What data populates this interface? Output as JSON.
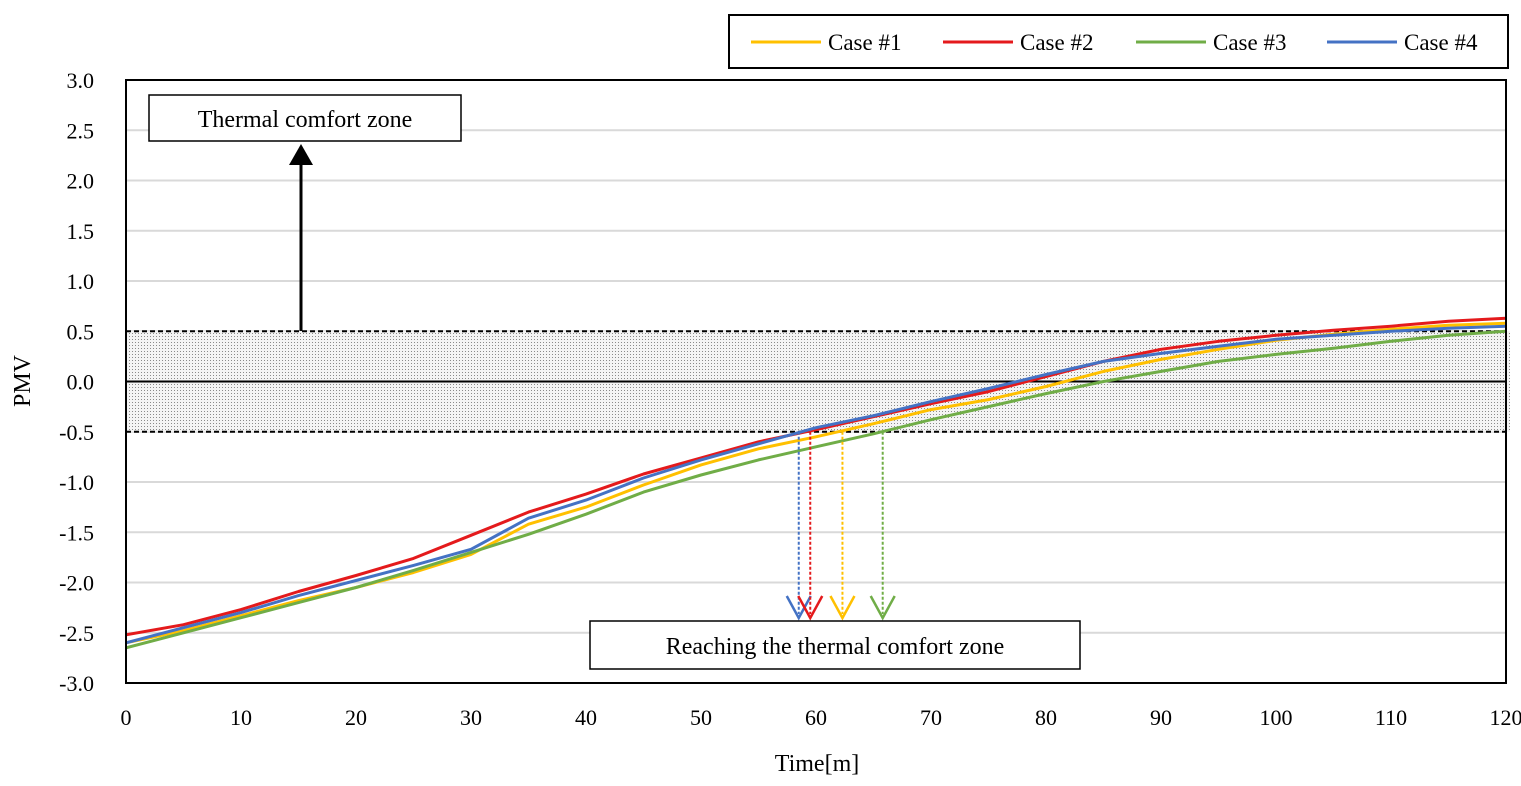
{
  "chart_data": {
    "type": "line",
    "xlabel": "Time[m]",
    "ylabel": "PMV",
    "xlim": [
      0,
      120
    ],
    "ylim": [
      -3.0,
      3.0
    ],
    "x_ticks": [
      "0",
      "10",
      "20",
      "30",
      "40",
      "50",
      "60",
      "70",
      "80",
      "90",
      "100",
      "110",
      "120"
    ],
    "y_ticks": [
      "3.0",
      "2.5",
      "2.0",
      "1.5",
      "1.0",
      "0.5",
      "0.0",
      "-0.5",
      "-1.0",
      "-1.5",
      "-2.0",
      "-2.5",
      "-3.0"
    ],
    "grid": "horizontal",
    "legend_position": "top-right",
    "comfort_zone": [
      -0.5,
      0.5
    ],
    "x": [
      0,
      5,
      10,
      15,
      20,
      25,
      30,
      35,
      40,
      45,
      50,
      55,
      60,
      65,
      70,
      75,
      80,
      85,
      90,
      95,
      100,
      105,
      110,
      115,
      120
    ],
    "series": [
      {
        "name": "Case #1",
        "color": "#ffc000",
        "values": [
          -2.6,
          -2.48,
          -2.33,
          -2.18,
          -2.05,
          -1.9,
          -1.72,
          -1.42,
          -1.25,
          -1.03,
          -0.83,
          -0.67,
          -0.55,
          -0.42,
          -0.28,
          -0.18,
          -0.05,
          0.1,
          0.22,
          0.32,
          0.41,
          0.47,
          0.52,
          0.56,
          0.58
        ]
      },
      {
        "name": "Case #2",
        "color": "#e41a1c",
        "values": [
          -2.52,
          -2.42,
          -2.27,
          -2.09,
          -1.93,
          -1.76,
          -1.53,
          -1.3,
          -1.12,
          -0.92,
          -0.76,
          -0.6,
          -0.48,
          -0.35,
          -0.22,
          -0.1,
          0.05,
          0.2,
          0.32,
          0.4,
          0.46,
          0.51,
          0.55,
          0.6,
          0.63
        ]
      },
      {
        "name": "Case #3",
        "color": "#70ad47",
        "values": [
          -2.65,
          -2.5,
          -2.35,
          -2.2,
          -2.05,
          -1.88,
          -1.7,
          -1.52,
          -1.32,
          -1.1,
          -0.93,
          -0.78,
          -0.65,
          -0.52,
          -0.38,
          -0.25,
          -0.12,
          0.0,
          0.1,
          0.2,
          0.27,
          0.33,
          0.4,
          0.46,
          0.5
        ]
      },
      {
        "name": "Case #4",
        "color": "#4472c4",
        "values": [
          -2.6,
          -2.45,
          -2.3,
          -2.13,
          -1.98,
          -1.83,
          -1.67,
          -1.36,
          -1.18,
          -0.96,
          -0.78,
          -0.62,
          -0.46,
          -0.34,
          -0.2,
          -0.07,
          0.07,
          0.2,
          0.28,
          0.35,
          0.42,
          0.46,
          0.5,
          0.53,
          0.55
        ]
      }
    ],
    "reach_times": [
      {
        "series": "Case #4",
        "x": 58.5,
        "color": "#4472c4"
      },
      {
        "series": "Case #2",
        "x": 59.5,
        "color": "#e41a1c"
      },
      {
        "series": "Case #1",
        "x": 62.3,
        "color": "#ffc000"
      },
      {
        "series": "Case #3",
        "x": 65.8,
        "color": "#70ad47"
      }
    ],
    "annotations": {
      "comfort_zone_label": "Thermal comfort zone",
      "reaching_label": "Reaching the thermal comfort zone"
    }
  }
}
